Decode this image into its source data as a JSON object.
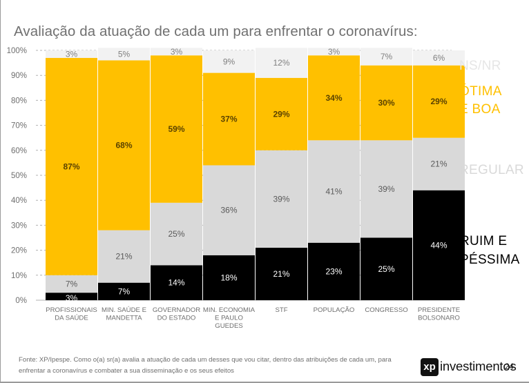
{
  "title": "Avaliação da atuação de cada um para enfrentar o coronavírus:",
  "footnote": "Fonte: XP/Ipespe. Como o(a) sr(a) avalia a atuação de cada um desses que vou citar, dentro das atribuições de cada um, para enfrentar a coronavírus e combater a sua disseminação e os seus efeitos",
  "branding": {
    "logo_mark": "xp",
    "logo_text": "investimentos",
    "page_number": "24"
  },
  "colors": {
    "ruim_pessima": "#000000",
    "regular": "#d9d9d9",
    "otima_boa": "#ffc000",
    "ns_nr": "#f2f2f2",
    "grid": "#b0b0b0"
  },
  "chart_data": {
    "type": "bar",
    "stacked": true,
    "categories": [
      [
        "PROFISSIONAIS",
        "DA SAÚDE"
      ],
      [
        "MIN. SAÚDE E",
        "MANDETTA"
      ],
      [
        "GOVERNADOR",
        "DO ESTADO"
      ],
      [
        "MIN. ECONOMIA",
        "E PAULO",
        "GUEDES"
      ],
      [
        "STF"
      ],
      [
        "POPULAÇÃO"
      ],
      [
        "CONGRESSO"
      ],
      [
        "PRESIDENTE",
        "BOLSONARO"
      ]
    ],
    "series": [
      {
        "name": "RUIM E PÉSSIMA",
        "legend_lines": [
          "RUIM E",
          "PÉSSIMA"
        ],
        "color": "#000000",
        "label_color": "#ffffff",
        "values": [
          3,
          7,
          14,
          18,
          21,
          23,
          25,
          44
        ]
      },
      {
        "name": "REGULAR",
        "legend_lines": [
          "REGULAR"
        ],
        "color": "#d9d9d9",
        "label_color": "#595959",
        "values": [
          7,
          21,
          25,
          36,
          39,
          41,
          39,
          21
        ]
      },
      {
        "name": "ÓTIMA E BOA",
        "legend_lines": [
          "ÓTIMA",
          "E BOA"
        ],
        "color": "#ffc000",
        "label_color": "#5a4200",
        "values": [
          87,
          68,
          59,
          37,
          29,
          34,
          30,
          29
        ]
      },
      {
        "name": "NS/NR",
        "legend_lines": [
          "NS/NR"
        ],
        "color": "#f2f2f2",
        "label_color": "#7f7f7f",
        "values": [
          3,
          5,
          3,
          9,
          12,
          3,
          7,
          6
        ]
      }
    ],
    "value_suffix": "%",
    "ylim": [
      0,
      100
    ],
    "yticks": [
      "0%",
      "10%",
      "20%",
      "30%",
      "40%",
      "50%",
      "60%",
      "70%",
      "80%",
      "90%",
      "100%"
    ],
    "grid": true,
    "legend_position": "right"
  }
}
